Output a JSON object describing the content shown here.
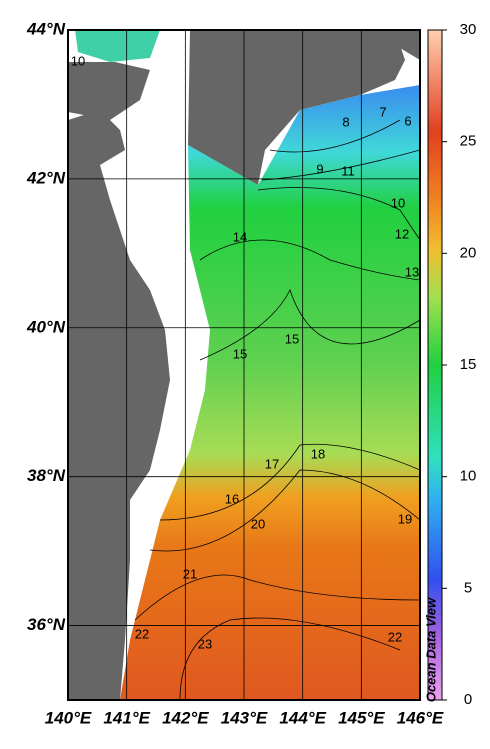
{
  "map": {
    "lon_ticks": [
      {
        "value": 140,
        "label": "140°E"
      },
      {
        "value": 141,
        "label": "141°E"
      },
      {
        "value": 142,
        "label": "142°E"
      },
      {
        "value": 143,
        "label": "143°E"
      },
      {
        "value": 144,
        "label": "144°E"
      },
      {
        "value": 145,
        "label": "145°E"
      },
      {
        "value": 146,
        "label": "146°E"
      }
    ],
    "lat_ticks": [
      {
        "value": 36,
        "label": "36°N"
      },
      {
        "value": 38,
        "label": "38°N"
      },
      {
        "value": 40,
        "label": "40°N"
      },
      {
        "value": 42,
        "label": "42°N"
      },
      {
        "value": 44,
        "label": "44°N"
      }
    ],
    "lonlim": [
      140,
      146
    ],
    "latlim": [
      35,
      44
    ],
    "colorbar": {
      "lim": [
        0,
        30
      ],
      "ticks": [
        0,
        5,
        10,
        15,
        20,
        25,
        30
      ]
    },
    "contour_labels": [
      10,
      8,
      7,
      6,
      9,
      11,
      10,
      12,
      13,
      14,
      15,
      15,
      18,
      17,
      16,
      20,
      19,
      21,
      22,
      23,
      22
    ],
    "credit": "Ocean Data View"
  }
}
